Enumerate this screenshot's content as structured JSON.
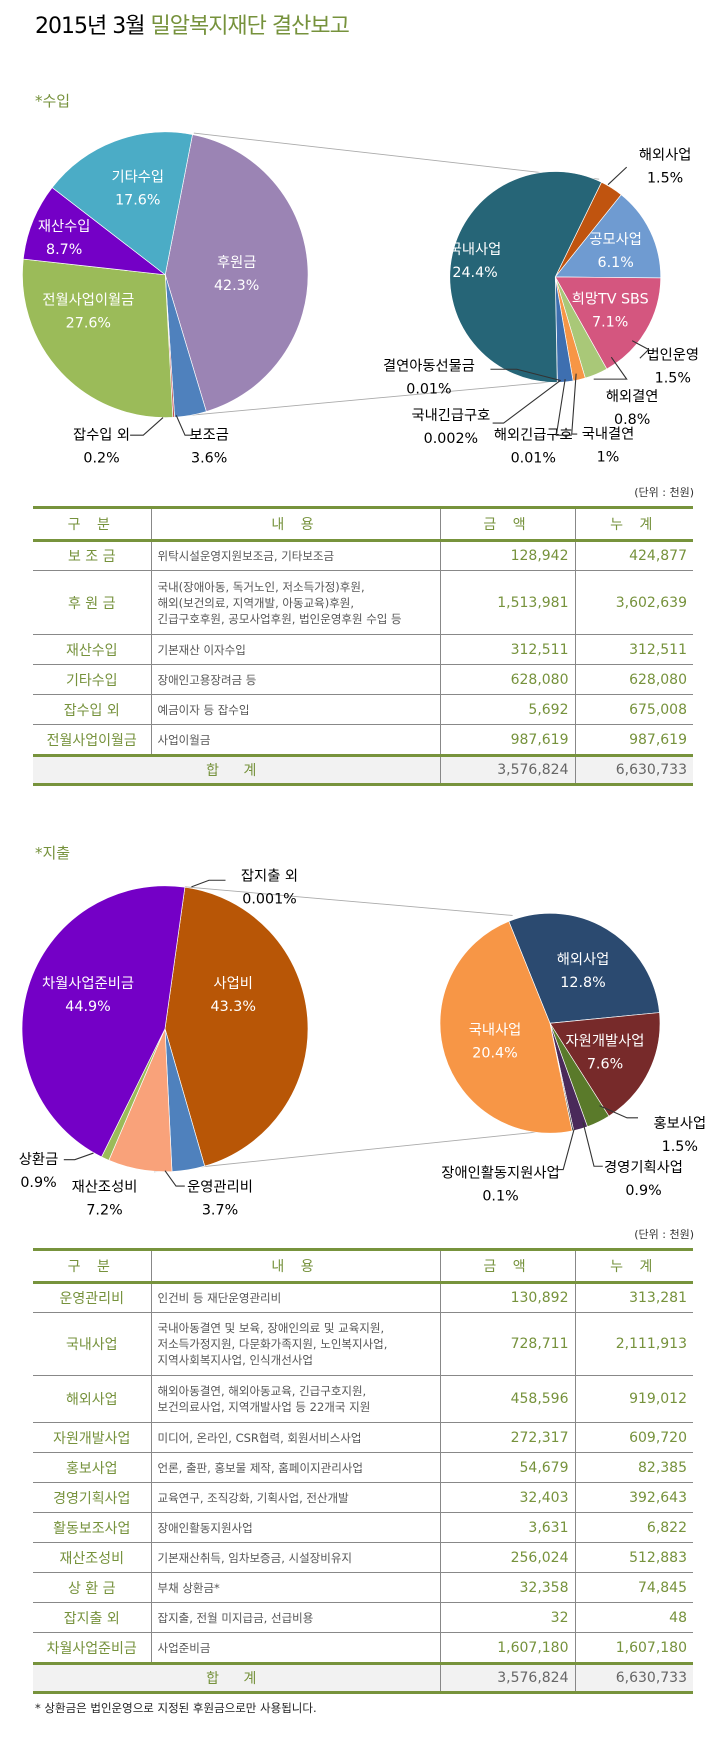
{
  "title": {
    "prefix": "2015년 3월",
    "highlight": "밀알복지재단 결산보고"
  },
  "income": {
    "label": "*수입",
    "unit": "(단위 : 천원)",
    "chart_data": [
      {
        "type": "pie",
        "slices": [
          {
            "name": "후원금",
            "value": 42.3,
            "label": "42.3%",
            "color": "#9b84b4"
          },
          {
            "name": "보조금",
            "value": 3.6,
            "label": "3.6%",
            "color": "#4f81bd"
          },
          {
            "name": "잡수입 외",
            "value": 0.2,
            "label": "0.2%",
            "color": "#c0504d"
          },
          {
            "name": "전월사업이월금",
            "value": 27.6,
            "label": "27.6%",
            "color": "#9bbb59"
          },
          {
            "name": "재산수입",
            "value": 8.7,
            "label": "8.7%",
            "color": "#7400c6"
          },
          {
            "name": "기타수입",
            "value": 17.6,
            "label": "17.6%",
            "color": "#4bacc6"
          }
        ]
      },
      {
        "type": "pie",
        "slices": [
          {
            "name": "해외사업",
            "value": 1.5,
            "label": "1.5%",
            "color": "#c0540f"
          },
          {
            "name": "공모사업",
            "value": 6.1,
            "label": "6.1%",
            "color": "#6f9bd1"
          },
          {
            "name": "희망TV SBS",
            "value": 7.1,
            "label": "7.1%",
            "color": "#d4567f"
          },
          {
            "name": "법인운영",
            "value": 1.5,
            "label": "1.5%",
            "color": "#a9c878"
          },
          {
            "name": "해외결연",
            "value": 0.8,
            "label": "0.8%",
            "color": "#f79646"
          },
          {
            "name": "국내결연",
            "value": 1,
            "label": "1%",
            "color": "#3e6fb0"
          },
          {
            "name": "해외긴급구호",
            "value": 0.01,
            "label": "0.01%",
            "color": "#1f3f66"
          },
          {
            "name": "국내긴급구호",
            "value": 0.002,
            "label": "0.002%",
            "color": "#555"
          },
          {
            "name": "결연아동선물금",
            "value": 0.01,
            "label": "0.01%",
            "color": "#888"
          },
          {
            "name": "국내사업",
            "value": 24.4,
            "label": "24.4%",
            "color": "#266577"
          }
        ]
      }
    ],
    "table": {
      "headers": [
        "구 분",
        "내 용",
        "금 액",
        "누 계"
      ],
      "rows": [
        {
          "cat": "보 조 금",
          "desc": [
            "위탁시설운영지원보조금, 기타보조금"
          ],
          "amount": "128,942",
          "cum": "424,877"
        },
        {
          "cat": "후 원 금",
          "desc": [
            "국내(장애아동, 독거노인, 저소득가정)후원,",
            "해외(보건의료, 지역개발, 아동교육)후원,",
            "긴급구호후원, 공모사업후원, 법인운영후원 수입 등"
          ],
          "amount": "1,513,981",
          "cum": "3,602,639"
        },
        {
          "cat": "재산수입",
          "desc": [
            "기본재산 이자수입"
          ],
          "amount": "312,511",
          "cum": "312,511"
        },
        {
          "cat": "기타수입",
          "desc": [
            "장애인고용장려금 등"
          ],
          "amount": "628,080",
          "cum": "628,080"
        },
        {
          "cat": "잡수입 외",
          "desc": [
            "예금이자 등 잡수입"
          ],
          "amount": "5,692",
          "cum": "675,008"
        },
        {
          "cat": "전월사업이월금",
          "desc": [
            "사업이월금"
          ],
          "amount": "987,619",
          "cum": "987,619"
        }
      ],
      "total": {
        "label": "합 계",
        "amount": "3,576,824",
        "cum": "6,630,733"
      }
    }
  },
  "expense": {
    "label": "*지출",
    "unit": "(단위 : 천원)",
    "chart_data": [
      {
        "type": "pie",
        "slices": [
          {
            "name": "사업비",
            "value": 43.3,
            "label": "43.3%",
            "color": "#b85606"
          },
          {
            "name": "운영관리비",
            "value": 3.7,
            "label": "3.7%",
            "color": "#4f81bd"
          },
          {
            "name": "재산조성비",
            "value": 7.2,
            "label": "7.2%",
            "color": "#f9a27a"
          },
          {
            "name": "상환금",
            "value": 0.9,
            "label": "0.9%",
            "color": "#9bbb59"
          },
          {
            "name": "차월사업준비금",
            "value": 44.9,
            "label": "44.9%",
            "color": "#7400c6"
          },
          {
            "name": "잡지출 외",
            "value": 0.001,
            "label": "0.001%",
            "color": "#333"
          }
        ]
      },
      {
        "type": "pie",
        "slices": [
          {
            "name": "해외사업",
            "value": 12.8,
            "label": "12.8%",
            "color": "#2b4a70"
          },
          {
            "name": "자원개발사업",
            "value": 7.6,
            "label": "7.6%",
            "color": "#772a2a"
          },
          {
            "name": "홍보사업",
            "value": 1.5,
            "label": "1.5%",
            "color": "#5a7a2a"
          },
          {
            "name": "경영기획사업",
            "value": 0.9,
            "label": "0.9%",
            "color": "#4a2a5a"
          },
          {
            "name": "장애인활동지원사업",
            "value": 0.1,
            "label": "0.1%",
            "color": "#333"
          },
          {
            "name": "국내사업",
            "value": 20.4,
            "label": "20.4%",
            "color": "#f79646"
          }
        ]
      }
    ],
    "table": {
      "headers": [
        "구 분",
        "내 용",
        "금 액",
        "누 계"
      ],
      "rows": [
        {
          "cat": "운영관리비",
          "desc": [
            "인건비 등 재단운영관리비"
          ],
          "amount": "130,892",
          "cum": "313,281"
        },
        {
          "cat": "국내사업",
          "desc": [
            "국내아동결연 및 보육, 장애인의료 및 교육지원,",
            "저소득가정지원, 다문화가족지원, 노인복지사업,",
            "지역사회복지사업, 인식개선사업"
          ],
          "amount": "728,711",
          "cum": "2,111,913"
        },
        {
          "cat": "해외사업",
          "desc": [
            "해외아동결연, 해외아동교육, 긴급구호지원,",
            "보건의료사업, 지역개발사업 등 22개국 지원"
          ],
          "amount": "458,596",
          "cum": "919,012"
        },
        {
          "cat": "자원개발사업",
          "desc": [
            "미디어, 온라인, CSR협력, 회원서비스사업"
          ],
          "amount": "272,317",
          "cum": "609,720"
        },
        {
          "cat": "홍보사업",
          "desc": [
            "언론, 출판, 홍보물 제작, 홈페이지관리사업"
          ],
          "amount": "54,679",
          "cum": "82,385"
        },
        {
          "cat": "경영기획사업",
          "desc": [
            "교육연구, 조직강화, 기획사업, 전산개발"
          ],
          "amount": "32,403",
          "cum": "392,643"
        },
        {
          "cat": "활동보조사업",
          "desc": [
            "장애인활동지원사업"
          ],
          "amount": "3,631",
          "cum": "6,822"
        },
        {
          "cat": "재산조성비",
          "desc": [
            "기본재산취득, 임차보증금, 시설장비유지"
          ],
          "amount": "256,024",
          "cum": "512,883"
        },
        {
          "cat": "상 환 금",
          "desc": [
            "부채 상환금*"
          ],
          "amount": "32,358",
          "cum": "74,845"
        },
        {
          "cat": "잡지출 외",
          "desc": [
            "잡지출, 전월 미지급금, 선급비용"
          ],
          "amount": "32",
          "cum": "48"
        },
        {
          "cat": "차월사업준비금",
          "desc": [
            "사업준비금"
          ],
          "amount": "1,607,180",
          "cum": "1,607,180"
        }
      ],
      "total": {
        "label": "합 계",
        "amount": "3,576,824",
        "cum": "6,630,733"
      }
    }
  },
  "footnote": "* 상환금은 법인운영으로 지정된 후원금으로만 사용됩니다."
}
